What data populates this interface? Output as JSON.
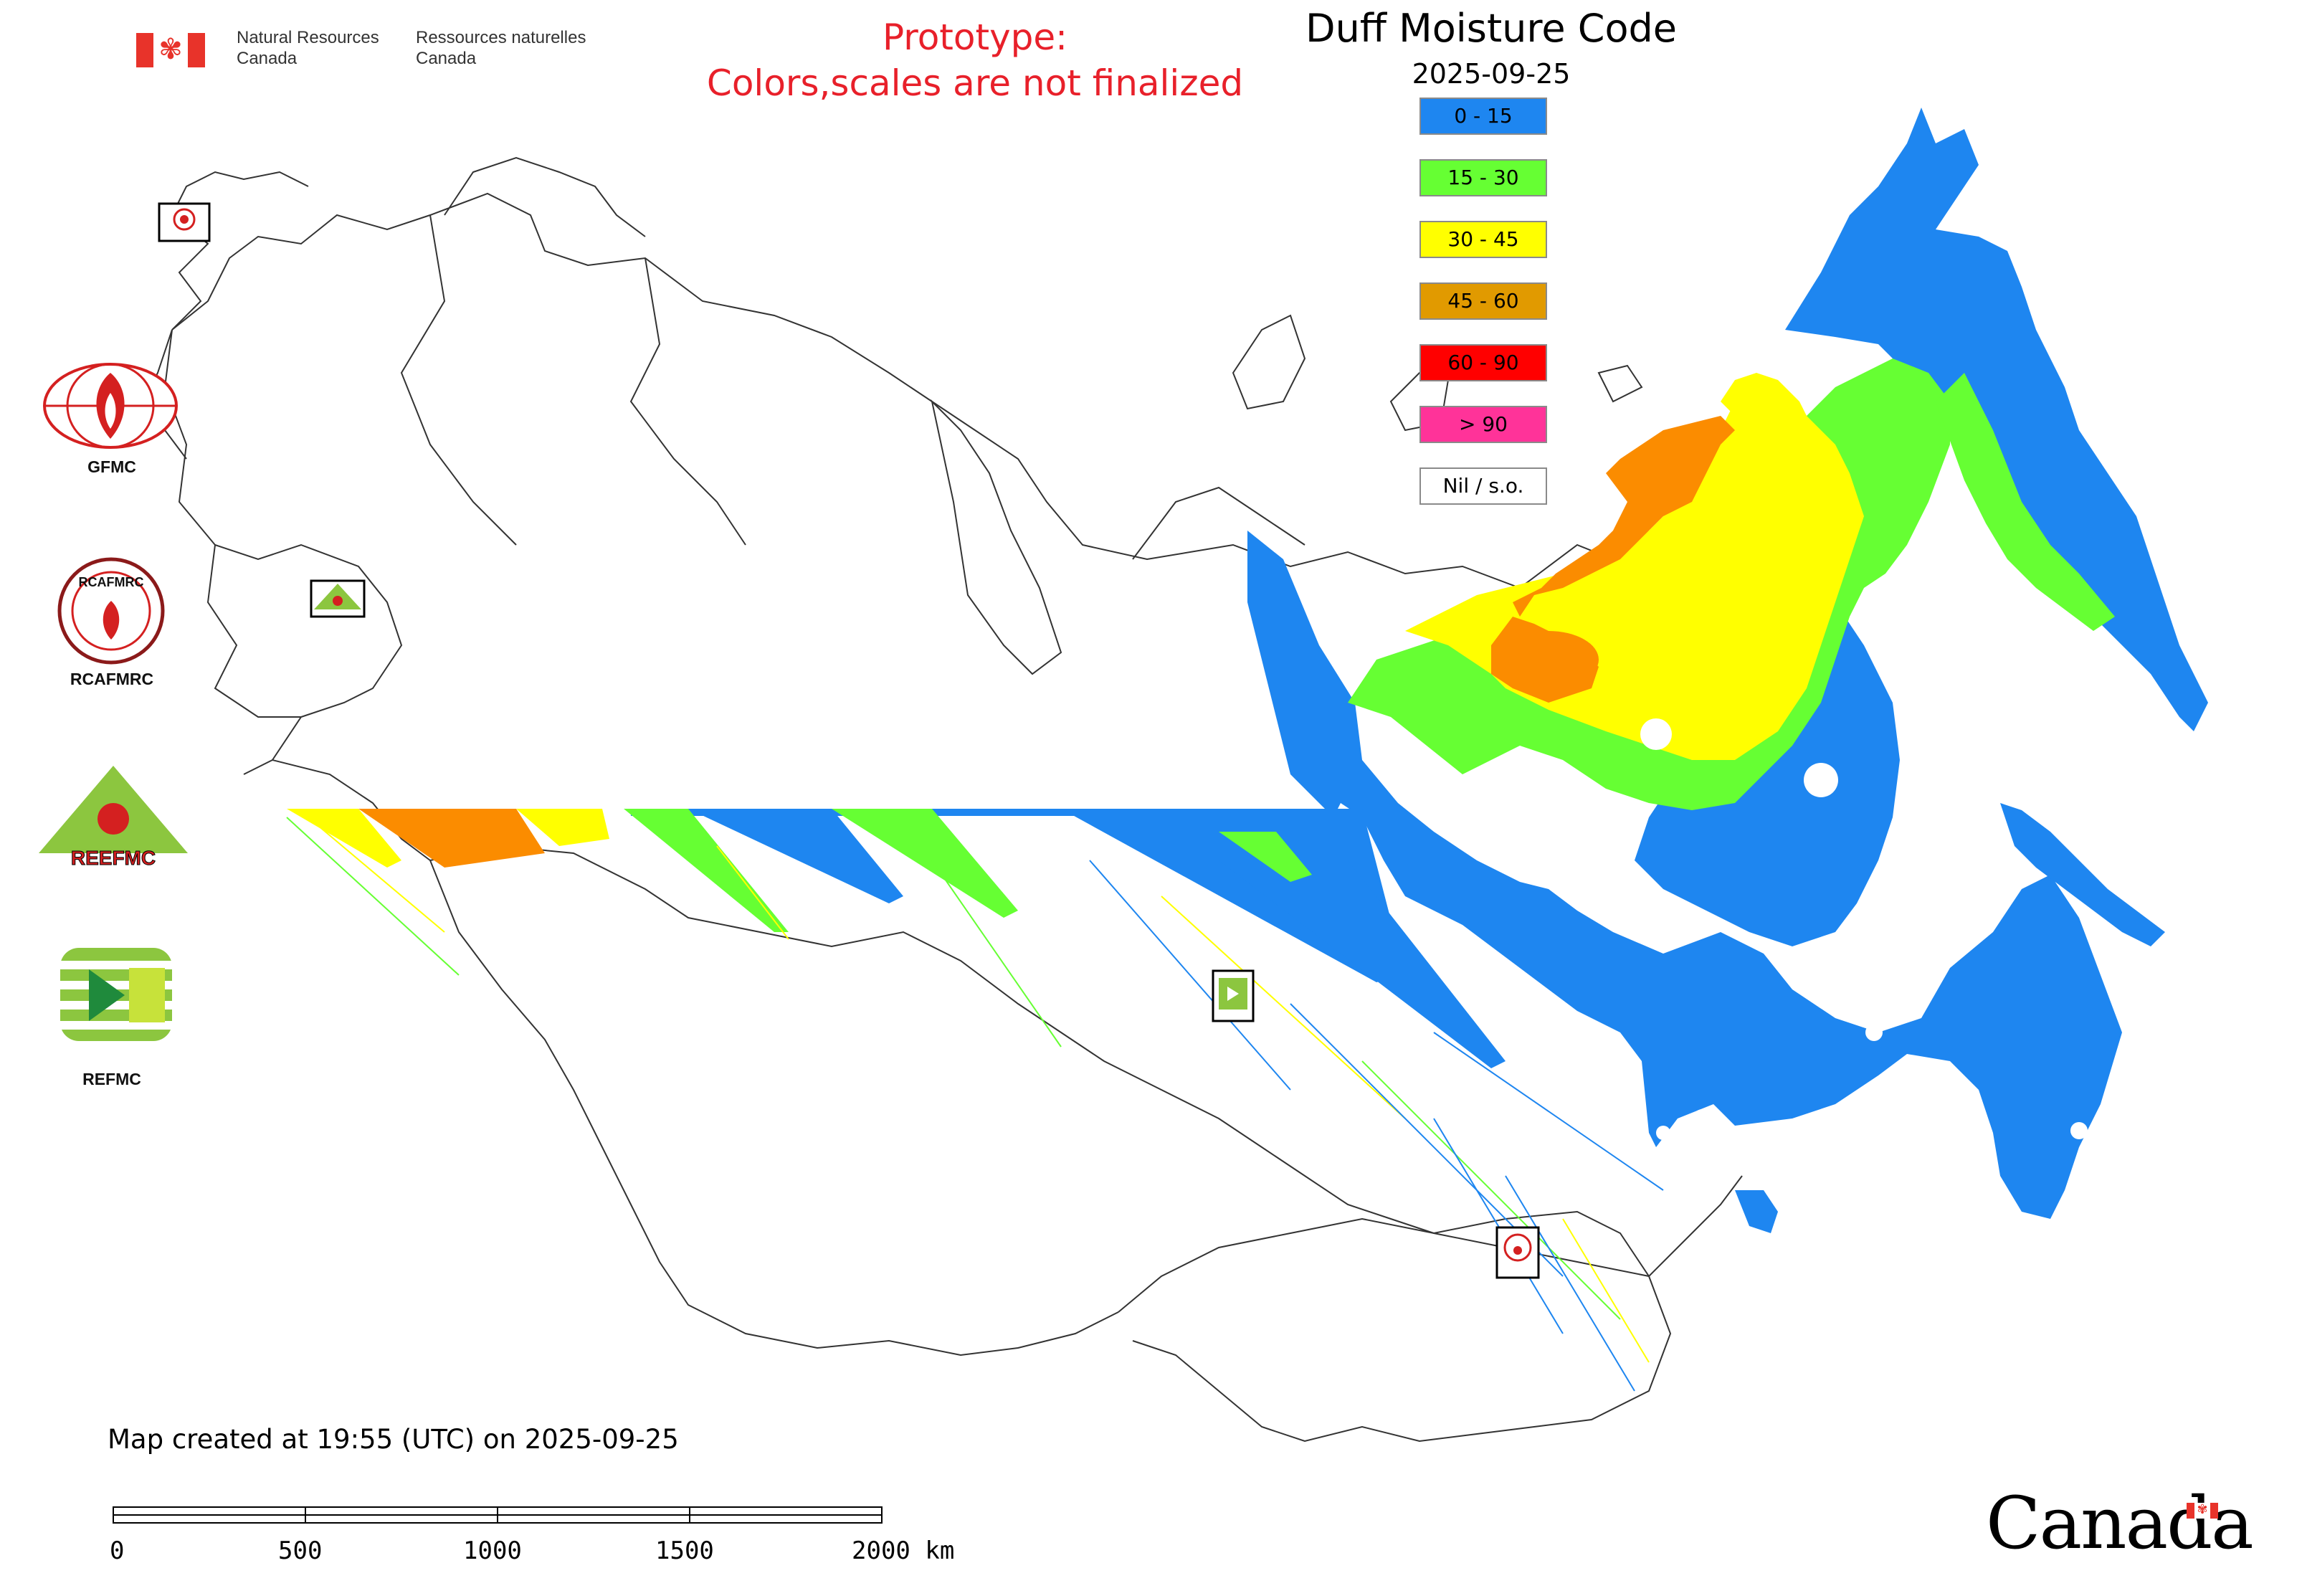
{
  "header": {
    "org_en_line1": "Natural Resources",
    "org_en_line2": "Canada",
    "org_fr_line1": "Ressources naturelles",
    "org_fr_line2": "Canada",
    "prototype_line1": "Prototype:",
    "prototype_line2": "Colors,scales are not finalized",
    "title": "Duff Moisture Code",
    "date": "2025-09-25"
  },
  "legend": {
    "items": [
      {
        "label": "0 - 15",
        "color": "#1e86f0"
      },
      {
        "label": "15 - 30",
        "color": "#66ff33"
      },
      {
        "label": "30 - 45",
        "color": "#ffff00"
      },
      {
        "label": "45 - 60",
        "color": "#e19a00"
      },
      {
        "label": "60 - 90",
        "color": "#ff0000"
      },
      {
        "label": "> 90",
        "color": "#ff3399"
      },
      {
        "label": "Nil / s.o.",
        "color": "#ffffff"
      }
    ]
  },
  "logos": {
    "gfmc": "GFMC",
    "rcafmrc": "RCAFMRC",
    "reefmc": "REEFMC",
    "refmc": "REFMC",
    "rcafmrc_ring_text": "RCAFMRC",
    "reefmc_logo_text": "REEFMC"
  },
  "footer": {
    "created": "Map created at 19:55 (UTC) on 2025-09-25",
    "scale_labels": [
      "0",
      "500",
      "1000",
      "1500",
      "2000 km"
    ],
    "canada_wordmark": "Canada"
  },
  "map": {
    "colors": {
      "blue": "#1e86f0",
      "green": "#66ff33",
      "yellow": "#ffff00",
      "orange": "#fb8c00",
      "outline": "#333333"
    }
  }
}
